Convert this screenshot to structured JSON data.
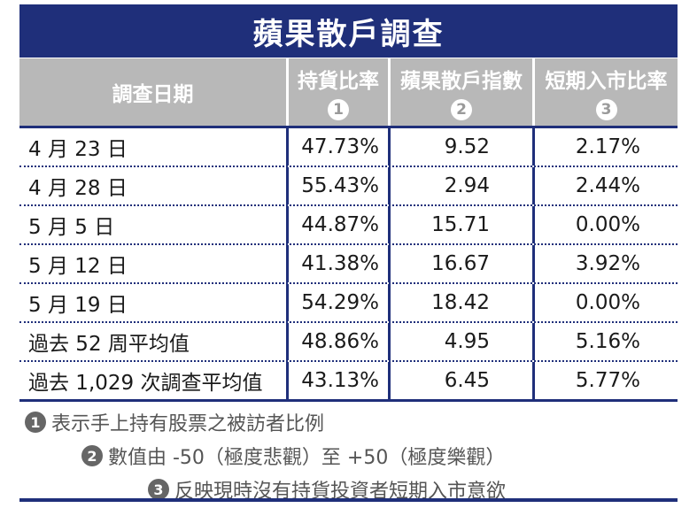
{
  "title": "蘋果散戶調查",
  "header": {
    "date_label": "調查日期",
    "col1_label": "持貨比率",
    "col1_num": "1",
    "col2_label": "蘋果散戶指數",
    "col2_num": "2",
    "col3_label": "短期入市比率",
    "col3_num": "3"
  },
  "rows": [
    {
      "date": "4 月 23 日",
      "holding": "47.73%",
      "index": "9.52",
      "entry": "2.17%"
    },
    {
      "date": "4 月 28 日",
      "holding": "55.43%",
      "index": "2.94",
      "entry": "2.44%"
    },
    {
      "date": "5 月 5 日",
      "holding": "44.87%",
      "index": "15.71",
      "entry": "0.00%"
    },
    {
      "date": "5 月 12 日",
      "holding": "41.38%",
      "index": "16.67",
      "entry": "3.92%"
    },
    {
      "date": "5 月 19 日",
      "holding": "54.29%",
      "index": "18.42",
      "entry": "0.00%"
    },
    {
      "date": "過去 52 周平均值",
      "holding": "48.86%",
      "index": "4.95",
      "entry": "5.16%"
    },
    {
      "date": "過去 1,029 次調查平均值",
      "holding": "43.13%",
      "index": "6.45",
      "entry": "5.77%"
    }
  ],
  "notes": [
    {
      "num": "1",
      "text": "表示手上持有股票之被訪者比例"
    },
    {
      "num": "2",
      "text": "數值由 -50（極度悲觀）至 +50（極度樂觀）"
    },
    {
      "num": "3",
      "text": "反映現時沒有持貨投資者短期入市意欲"
    }
  ],
  "colors": {
    "navy": "#1f2f7a",
    "header_gray": "#b8b8b8"
  }
}
